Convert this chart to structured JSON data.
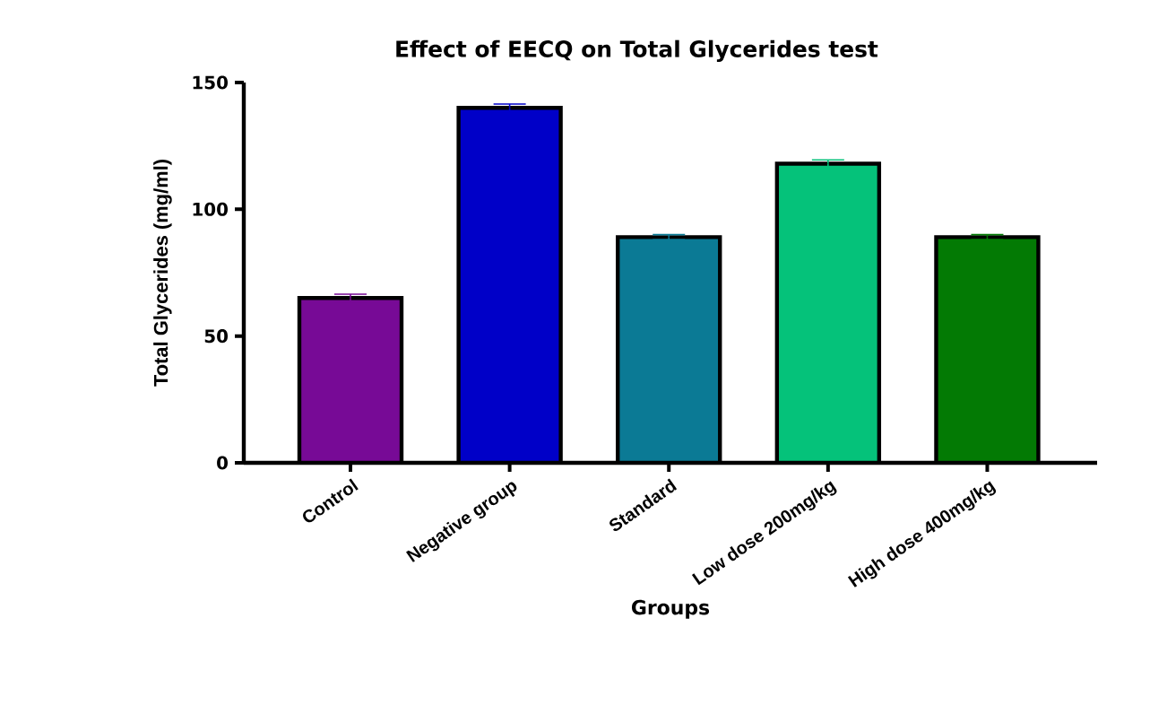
{
  "chart_data": {
    "type": "bar",
    "title": "Effect of EECQ on Total Glycerides  test",
    "xlabel": "Groups",
    "ylabel": "Total Glycerides (mg/ml)",
    "categories": [
      "Control",
      "Negative group",
      "Standard",
      "Low dose 200mg/kg",
      "High dose 400mg/kg"
    ],
    "values": [
      65,
      140,
      89,
      118,
      89
    ],
    "errors": [
      1.5,
      1.5,
      1,
      1.5,
      1
    ],
    "colors": [
      "#770a96",
      "#0000c8",
      "#0b7a95",
      "#05c27a",
      "#037a04"
    ],
    "ylim": [
      0,
      150
    ],
    "yticks": [
      0,
      50,
      100,
      150
    ],
    "grid": false
  }
}
